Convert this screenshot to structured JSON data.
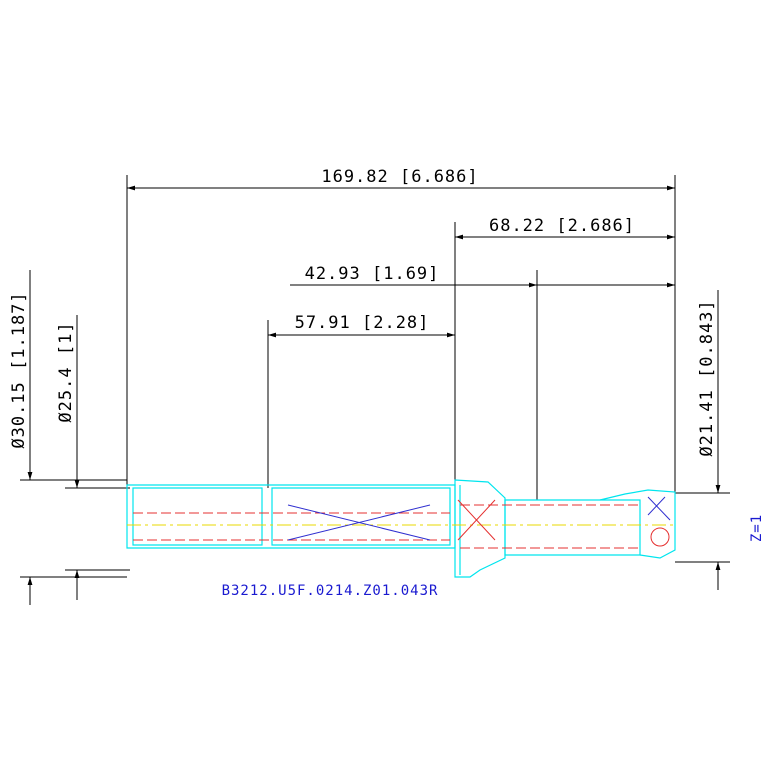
{
  "dimensions": [
    {
      "label": "169.82 [6.686]"
    },
    {
      "label": "68.22 [2.686]"
    },
    {
      "label": "42.93 [1.69]"
    },
    {
      "label": "57.91 [2.28]"
    },
    {
      "label": "Ø30.15 [1.187]"
    },
    {
      "label": "Ø25.4 [1]"
    },
    {
      "label": "Ø21.41 [0.843]"
    }
  ],
  "part_number": "B3212.U5F.0214.Z01.043R",
  "teeth": "Z=1"
}
